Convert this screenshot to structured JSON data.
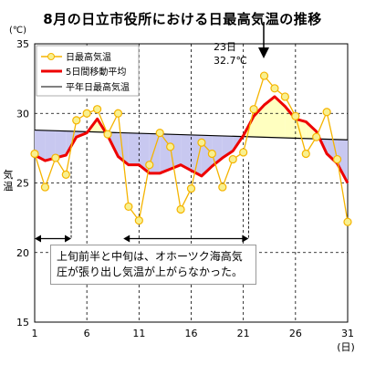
{
  "chart_data": {
    "type": "line",
    "title": "8月の日立市役所における日最高気温の推移",
    "y_unit": "(℃)",
    "ylabel": "気温",
    "x_unit": "(日)",
    "ylim": [
      15,
      35
    ],
    "yticks": [
      15,
      20,
      25,
      30,
      35
    ],
    "xlim": [
      1,
      31
    ],
    "xticks": [
      1,
      6,
      11,
      16,
      21,
      26,
      31
    ],
    "grid": true,
    "legend_position": "top-left",
    "series": [
      {
        "name": "日最高気温",
        "color": "#f5b400",
        "x": [
          1,
          2,
          3,
          4,
          5,
          6,
          7,
          8,
          9,
          10,
          11,
          12,
          13,
          14,
          15,
          16,
          17,
          18,
          19,
          20,
          21,
          22,
          23,
          24,
          25,
          26,
          27,
          28,
          29,
          30,
          31
        ],
        "values": [
          27.1,
          24.7,
          26.8,
          25.6,
          29.5,
          30.0,
          30.3,
          28.5,
          30.0,
          23.3,
          22.3,
          26.3,
          28.6,
          27.6,
          23.1,
          24.6,
          27.9,
          27.1,
          24.7,
          26.7,
          27.2,
          30.3,
          32.7,
          31.8,
          31.2,
          29.8,
          27.1,
          28.3,
          30.1,
          26.7,
          22.2
        ]
      },
      {
        "name": "5日間移動平均",
        "color": "#ee0000",
        "x": [
          1,
          2,
          3,
          4,
          5,
          6,
          7,
          8,
          9,
          10,
          11,
          12,
          13,
          14,
          15,
          16,
          17,
          18,
          19,
          20,
          21,
          22,
          23,
          24,
          25,
          26,
          27,
          28,
          29,
          30,
          31
        ],
        "values": [
          27.0,
          26.6,
          26.8,
          27.0,
          28.3,
          28.6,
          29.6,
          28.4,
          26.9,
          26.3,
          26.3,
          25.7,
          25.7,
          26.0,
          26.3,
          25.9,
          25.5,
          26.2,
          26.8,
          27.3,
          28.4,
          29.8,
          30.6,
          31.2,
          30.5,
          29.6,
          29.4,
          28.7,
          27.1,
          26.4,
          25.0
        ]
      },
      {
        "name": "平年日最高気温",
        "color": "#000000",
        "x": [
          1,
          31
        ],
        "values": [
          28.8,
          28.1
        ]
      }
    ],
    "annotations": {
      "peak_day": "23日",
      "peak_value": "32.7℃",
      "note_line1": "上旬前半と中旬は、オホーツク海高気",
      "note_line2": "圧が張り出し気温が上がらなかった。"
    },
    "colors": {
      "below_normal_fill": "#c8c8f0",
      "above_normal_fill": "#ffffc0",
      "grid_line": "#000000",
      "marker_fill": "#f8f090",
      "marker_stroke": "#f5b400"
    }
  }
}
